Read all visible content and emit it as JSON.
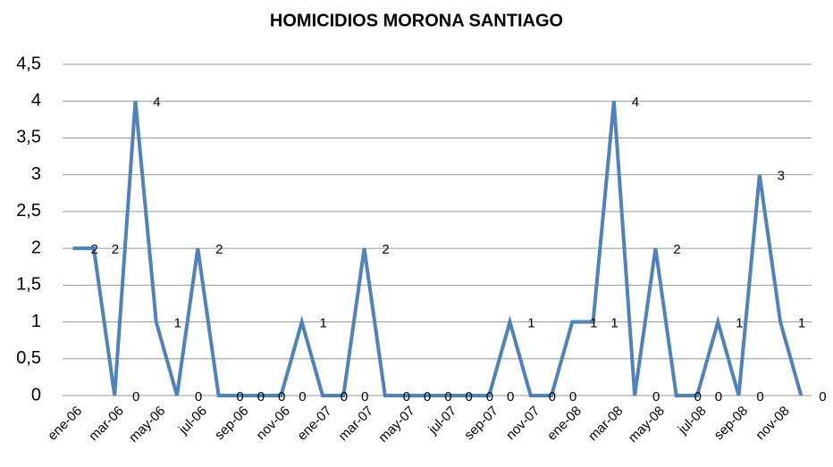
{
  "chart_data": {
    "type": "line",
    "title": "HOMICIDIOS MORONA SANTIAGO",
    "categories": [
      "ene-06",
      null,
      "mar-06",
      null,
      "may-06",
      null,
      "jul-06",
      null,
      "sep-06",
      null,
      "nov-06",
      null,
      "ene-07",
      null,
      "mar-07",
      null,
      "may-07",
      null,
      "jul-07",
      null,
      "sep-07",
      null,
      "nov-07",
      null,
      "ene-08",
      null,
      "mar-08",
      null,
      "may-08",
      null,
      "jul-08",
      null,
      "sep-08",
      null,
      "nov-08",
      null
    ],
    "series": [
      {
        "name": "Homicidios",
        "color": "#4f81bd",
        "values": [
          2,
          2,
          0,
          4,
          1,
          0,
          2,
          0,
          0,
          0,
          0,
          1,
          0,
          0,
          2,
          0,
          0,
          0,
          0,
          0,
          0,
          1,
          0,
          0,
          1,
          1,
          4,
          0,
          2,
          0,
          0,
          1,
          0,
          3,
          1,
          0
        ]
      }
    ],
    "ylim": [
      0,
      4.5
    ],
    "yticks": [
      0,
      {
        "value": 0.5,
        "label": "0,5"
      },
      1,
      {
        "value": 1.5,
        "label": "1,5"
      },
      2,
      {
        "value": 2.5,
        "label": "2,5"
      },
      3,
      {
        "value": 3.5,
        "label": "3,5"
      },
      4,
      {
        "value": 4.5,
        "label": "4,5"
      }
    ],
    "grid": true,
    "data_labels": true
  }
}
